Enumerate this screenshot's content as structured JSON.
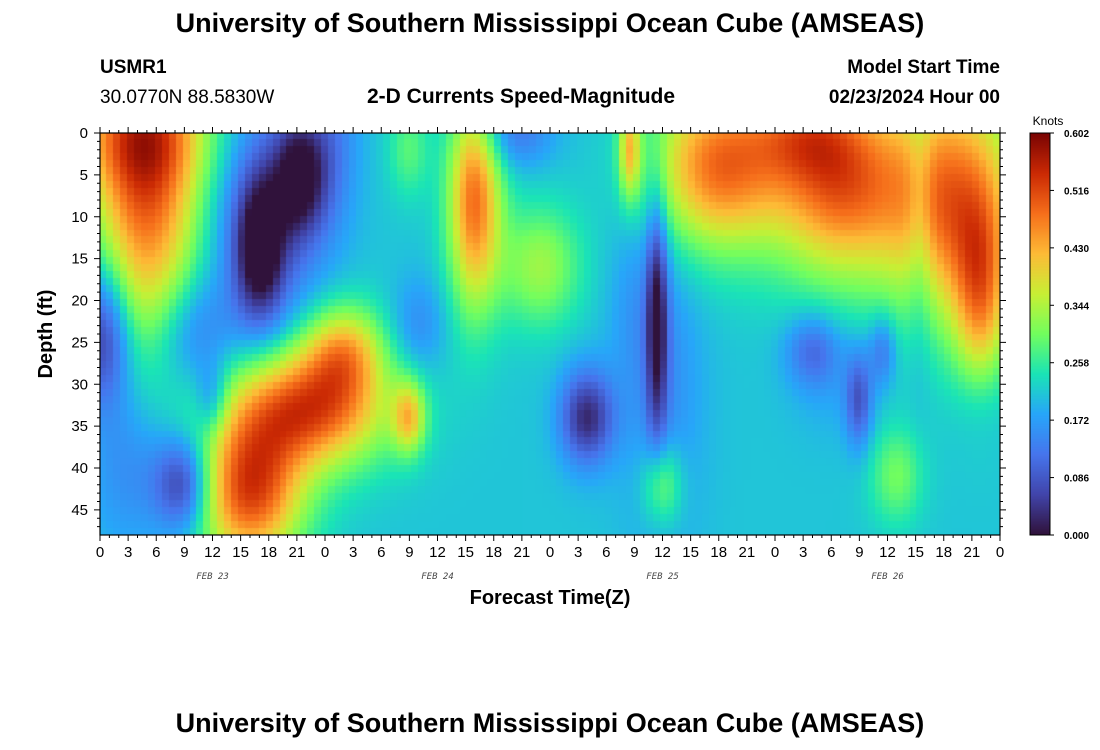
{
  "header": {
    "title": "University of Southern Mississippi Ocean Cube (AMSEAS)",
    "station": "USMR1",
    "coords": "30.0770N  88.5830W",
    "subtitle": "2-D Currents Speed-Magnitude",
    "model_label": "Model Start Time",
    "model_time": "02/23/2024 Hour 00"
  },
  "footer": {
    "title": "University of Southern Mississippi Ocean Cube (AMSEAS)"
  },
  "chart_data": {
    "type": "heatmap",
    "title": "2-D Currents Speed-Magnitude",
    "xlabel": "Forecast Time(Z)",
    "ylabel": "Depth (ft)",
    "x_range_hours": [
      0,
      96
    ],
    "y_range_ft": [
      0,
      48
    ],
    "x_ticks": [
      {
        "h": 0,
        "label": "0"
      },
      {
        "h": 3,
        "label": "3"
      },
      {
        "h": 6,
        "label": "6"
      },
      {
        "h": 9,
        "label": "9"
      },
      {
        "h": 12,
        "label": "12"
      },
      {
        "h": 15,
        "label": "15"
      },
      {
        "h": 18,
        "label": "18"
      },
      {
        "h": 21,
        "label": "21"
      },
      {
        "h": 24,
        "label": "0"
      },
      {
        "h": 27,
        "label": "3"
      },
      {
        "h": 30,
        "label": "6"
      },
      {
        "h": 33,
        "label": "9"
      },
      {
        "h": 36,
        "label": "12"
      },
      {
        "h": 39,
        "label": "15"
      },
      {
        "h": 42,
        "label": "18"
      },
      {
        "h": 45,
        "label": "21"
      },
      {
        "h": 48,
        "label": "0"
      },
      {
        "h": 51,
        "label": "3"
      },
      {
        "h": 54,
        "label": "6"
      },
      {
        "h": 57,
        "label": "9"
      },
      {
        "h": 60,
        "label": "12"
      },
      {
        "h": 63,
        "label": "15"
      },
      {
        "h": 66,
        "label": "18"
      },
      {
        "h": 69,
        "label": "21"
      },
      {
        "h": 72,
        "label": "0"
      },
      {
        "h": 75,
        "label": "3"
      },
      {
        "h": 78,
        "label": "6"
      },
      {
        "h": 81,
        "label": "9"
      },
      {
        "h": 84,
        "label": "12"
      },
      {
        "h": 87,
        "label": "15"
      },
      {
        "h": 90,
        "label": "18"
      },
      {
        "h": 93,
        "label": "21"
      },
      {
        "h": 96,
        "label": "0"
      }
    ],
    "y_ticks": [
      0,
      5,
      10,
      15,
      20,
      25,
      30,
      35,
      40,
      45
    ],
    "date_labels": [
      {
        "h": 12,
        "label": "FEB 23"
      },
      {
        "h": 36,
        "label": "FEB 24"
      },
      {
        "h": 60,
        "label": "FEB 25"
      },
      {
        "h": 84,
        "label": "FEB 26"
      }
    ],
    "colorbar": {
      "unit": "Knots",
      "min": 0.0,
      "max": 0.602,
      "ticks": [
        "0.000",
        "0.086",
        "0.172",
        "0.258",
        "0.344",
        "0.430",
        "0.516",
        "0.602"
      ]
    },
    "features": [
      {
        "t": 5,
        "d": 8,
        "st": 4,
        "sd": 12,
        "a": 0.45
      },
      {
        "t": 4,
        "d": 0,
        "st": 6,
        "sd": 5,
        "a": 0.25
      },
      {
        "t": 0.5,
        "d": 24,
        "st": 2,
        "sd": 6,
        "a": -0.3
      },
      {
        "t": 10,
        "d": 24,
        "st": 3,
        "sd": 5,
        "a": -0.15
      },
      {
        "t": 17,
        "d": 14,
        "st": 1.8,
        "sd": 6,
        "a": -0.3
      },
      {
        "t": 21.5,
        "d": 5,
        "st": 2,
        "sd": 5,
        "a": -0.3
      },
      {
        "t": 18,
        "d": 10,
        "st": 4,
        "sd": 10,
        "a": -0.2
      },
      {
        "t": 25,
        "d": 0,
        "st": 2,
        "sd": 8,
        "a": -0.1
      },
      {
        "t": 22,
        "d": 33,
        "st": 6,
        "sd": 5,
        "a": 0.5
      },
      {
        "t": 16,
        "d": 43,
        "st": 4,
        "sd": 6,
        "a": 0.5
      },
      {
        "t": 26,
        "d": 26,
        "st": 3,
        "sd": 4,
        "a": 0.3
      },
      {
        "t": 9,
        "d": 42,
        "st": 2.2,
        "sd": 4,
        "a": -0.3
      },
      {
        "t": 12,
        "d": 32,
        "st": 1.2,
        "sd": 3,
        "a": -0.15
      },
      {
        "t": 3,
        "d": 40,
        "st": 3,
        "sd": 7,
        "a": -0.1
      },
      {
        "t": 33,
        "d": 34,
        "st": 1.2,
        "sd": 3,
        "a": 0.28
      },
      {
        "t": 33,
        "d": 2,
        "st": 1.5,
        "sd": 4,
        "a": 0.12
      },
      {
        "t": 34,
        "d": 23,
        "st": 2,
        "sd": 4,
        "a": -0.1
      },
      {
        "t": 40,
        "d": 8,
        "st": 2,
        "sd": 9,
        "a": 0.45
      },
      {
        "t": 47,
        "d": 16,
        "st": 3,
        "sd": 5,
        "a": 0.2
      },
      {
        "t": 44,
        "d": 0,
        "st": 3,
        "sd": 3,
        "a": -0.15
      },
      {
        "t": 52,
        "d": 34,
        "st": 2,
        "sd": 4,
        "a": -0.3
      },
      {
        "t": 60,
        "d": 30,
        "st": 3,
        "sd": 14,
        "a": -0.1
      },
      {
        "t": 60,
        "d": 42,
        "st": 1.5,
        "sd": 3.5,
        "a": 0.2
      },
      {
        "t": 57,
        "d": 20,
        "st": 2,
        "sd": 8,
        "a": -0.05
      },
      {
        "t": 59.5,
        "d": 22,
        "st": 0.8,
        "sd": 10,
        "a": -0.3
      },
      {
        "t": 56.5,
        "d": 2,
        "st": 0.8,
        "sd": 4,
        "a": 0.3
      },
      {
        "t": 66,
        "d": 4,
        "st": 5,
        "sd": 7,
        "a": 0.45
      },
      {
        "t": 79,
        "d": 6,
        "st": 5,
        "sd": 8,
        "a": 0.45
      },
      {
        "t": 75,
        "d": 0,
        "st": 4,
        "sd": 4,
        "a": 0.2
      },
      {
        "t": 91,
        "d": 8,
        "st": 5,
        "sd": 10,
        "a": 0.45
      },
      {
        "t": 94,
        "d": 20,
        "st": 2,
        "sd": 8,
        "a": 0.3
      },
      {
        "t": 87.5,
        "d": 10,
        "st": 1,
        "sd": 12,
        "a": -0.1
      },
      {
        "t": 76,
        "d": 26,
        "st": 2,
        "sd": 3,
        "a": -0.15
      },
      {
        "t": 81,
        "d": 32,
        "st": 1,
        "sd": 4,
        "a": -0.2
      },
      {
        "t": 83.5,
        "d": 26,
        "st": 1,
        "sd": 3,
        "a": -0.15
      },
      {
        "t": 78,
        "d": 29,
        "st": 3,
        "sd": 5,
        "a": -0.05
      },
      {
        "t": 85,
        "d": 41,
        "st": 2,
        "sd": 4,
        "a": 0.15
      },
      {
        "t": 94,
        "d": 32,
        "st": 2,
        "sd": 4,
        "a": -0.05
      }
    ]
  }
}
